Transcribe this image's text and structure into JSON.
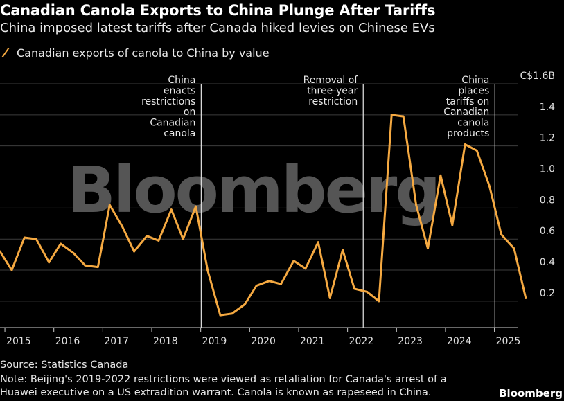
{
  "header": {
    "title": "Canadian Canola Exports to China Plunge After Tariffs",
    "subtitle": "China imposed latest tariffs after Canada hiked levies on Chinese EVs"
  },
  "legend": {
    "label": "Canadian exports of canola to China by value"
  },
  "footer": {
    "source": "Source: Statistics Canada",
    "note_line1": "Note: Beijing's 2019-2022 restrictions were viewed as retaliation for Canada's arrest of a",
    "note_line2": "Huawei executive on a US extradition warrant. Canola is known as rapeseed in China.",
    "brand": "Bloomberg"
  },
  "watermark": "Bloomberg",
  "colors": {
    "line": "#f5a941",
    "grid": "#3d3d3d",
    "background": "#000000"
  },
  "chart_data": {
    "type": "line",
    "title": "Canadian Canola Exports to China Plunge After Tariffs",
    "series": [
      {
        "name": "Canadian exports of canola to China by value",
        "unit": "C$ billions",
        "points": [
          [
            2014.88,
            0.52
          ],
          [
            2015.12,
            0.4
          ],
          [
            2015.38,
            0.61
          ],
          [
            2015.62,
            0.6
          ],
          [
            2015.88,
            0.45
          ],
          [
            2016.12,
            0.57
          ],
          [
            2016.38,
            0.51
          ],
          [
            2016.62,
            0.43
          ],
          [
            2016.88,
            0.42
          ],
          [
            2017.12,
            0.82
          ],
          [
            2017.38,
            0.68
          ],
          [
            2017.62,
            0.52
          ],
          [
            2017.88,
            0.62
          ],
          [
            2018.12,
            0.59
          ],
          [
            2018.38,
            0.79
          ],
          [
            2018.62,
            0.6
          ],
          [
            2018.88,
            0.81
          ],
          [
            2019.12,
            0.4
          ],
          [
            2019.38,
            0.11
          ],
          [
            2019.62,
            0.12
          ],
          [
            2019.88,
            0.18
          ],
          [
            2020.12,
            0.3
          ],
          [
            2020.38,
            0.33
          ],
          [
            2020.62,
            0.31
          ],
          [
            2020.88,
            0.46
          ],
          [
            2021.12,
            0.41
          ],
          [
            2021.38,
            0.58
          ],
          [
            2021.62,
            0.22
          ],
          [
            2021.88,
            0.53
          ],
          [
            2022.12,
            0.28
          ],
          [
            2022.38,
            0.26
          ],
          [
            2022.62,
            0.2
          ],
          [
            2022.88,
            1.4
          ],
          [
            2023.12,
            1.39
          ],
          [
            2023.38,
            0.82
          ],
          [
            2023.62,
            0.54
          ],
          [
            2023.88,
            1.01
          ],
          [
            2024.12,
            0.69
          ],
          [
            2024.38,
            1.21
          ],
          [
            2024.62,
            1.17
          ],
          [
            2024.88,
            0.94
          ],
          [
            2025.12,
            0.63
          ],
          [
            2025.38,
            0.54
          ],
          [
            2025.62,
            0.22
          ]
        ]
      }
    ],
    "x_ticks": [
      "2015",
      "2016",
      "2017",
      "2018",
      "2019",
      "2020",
      "2021",
      "2022",
      "2023",
      "2024",
      "2025"
    ],
    "y_ticks": [
      "C$1.6B",
      "1.4",
      "1.2",
      "1.0",
      "0.8",
      "0.6",
      "0.4",
      "0.2"
    ],
    "xlim": [
      2014.88,
      2025.75
    ],
    "ylim": [
      0.03,
      1.6
    ],
    "grid": true,
    "annotations": [
      {
        "x": 2018.99,
        "lines": [
          "China",
          "enacts",
          "restrictions",
          "on",
          "Canadian",
          "canola"
        ]
      },
      {
        "x": 2022.3,
        "lines": [
          "Removal of",
          "three-year",
          "restriction"
        ]
      },
      {
        "x": 2024.99,
        "lines": [
          "China",
          "places",
          "tariffs on",
          "Canadian",
          "canola",
          "products"
        ]
      }
    ]
  }
}
